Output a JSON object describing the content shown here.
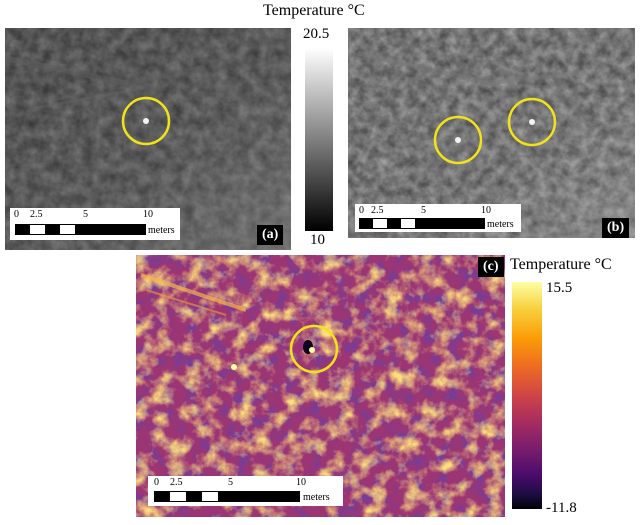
{
  "colorbar_gray": {
    "title": "Temperature °C",
    "max": "20.5",
    "min": "10"
  },
  "colorbar_inferno": {
    "title": "Temperature °C",
    "max": "15.5",
    "min": "-11.8"
  },
  "panel_a": {
    "label": "(a)",
    "scale_ticks": [
      "0",
      "2.5",
      "5",
      "10"
    ],
    "unit": "meters"
  },
  "panel_b": {
    "label": "(b)",
    "scale_ticks": [
      "0",
      "2.5",
      "5",
      "10"
    ],
    "unit": "meters"
  },
  "panel_c": {
    "label": "(c)",
    "scale_ticks": [
      "0",
      "2.5",
      "5",
      "10"
    ],
    "unit": "meters"
  },
  "colors": {
    "highlight_circle": "#f2e21a",
    "tag_bg": "#000000"
  }
}
